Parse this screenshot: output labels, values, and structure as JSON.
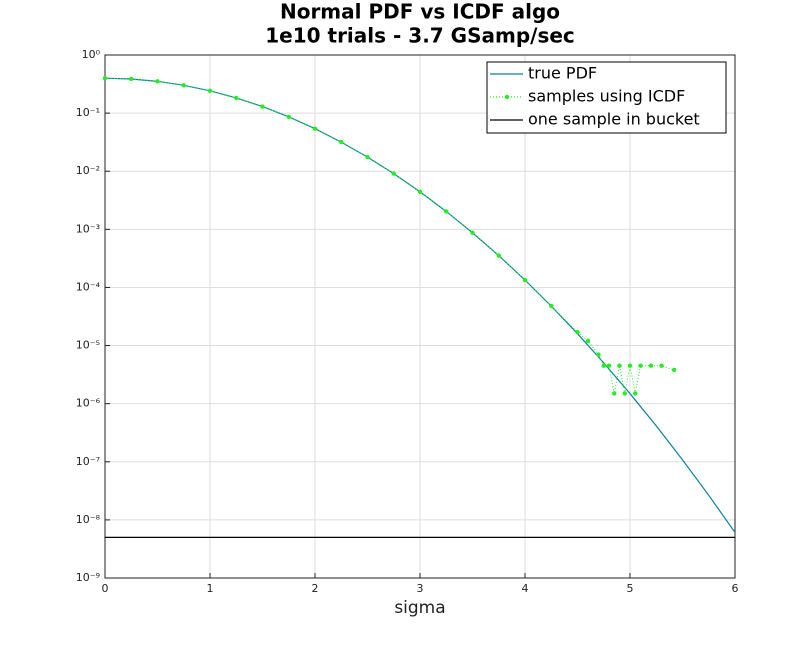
{
  "chart_data": {
    "type": "line",
    "title": "Normal PDF vs ICDF algo",
    "subtitle": "1e10 trials - 3.7 GSamp/sec",
    "x_label": "sigma",
    "log_y": true,
    "grid": true,
    "legend": "upper right",
    "xlim": [
      0,
      6
    ],
    "xticks": [
      0,
      1,
      2,
      3,
      4,
      5,
      6
    ],
    "ylim": [
      1e-09,
      1
    ],
    "yticks": [
      {
        "value": 1e-09,
        "label": "10⁻⁹"
      },
      {
        "value": 1e-08,
        "label": "10⁻⁸"
      },
      {
        "value": 1e-07,
        "label": "10⁻⁷"
      },
      {
        "value": 1e-06,
        "label": "10⁻⁶"
      },
      {
        "value": 1e-05,
        "label": "10⁻⁵"
      },
      {
        "value": 0.0001,
        "label": "10⁻⁴"
      },
      {
        "value": 0.001,
        "label": "10⁻³"
      },
      {
        "value": 0.01,
        "label": "10⁻²"
      },
      {
        "value": 0.1,
        "label": "10⁻¹"
      },
      {
        "value": 1,
        "label": "10⁰"
      }
    ],
    "series": [
      {
        "name": "true PDF",
        "color": "#0a7f9f",
        "style": "solid",
        "markers": false,
        "x": [
          0,
          0.25,
          0.5,
          0.75,
          1,
          1.25,
          1.5,
          1.75,
          2,
          2.25,
          2.5,
          2.75,
          3,
          3.25,
          3.5,
          3.75,
          4,
          4.25,
          4.5,
          4.75,
          5,
          5.25,
          5.5,
          5.75,
          6
        ],
        "values": [
          0.3989,
          0.3867,
          0.3521,
          0.3011,
          0.242,
          0.1826,
          0.1295,
          0.0863,
          0.054,
          0.0317,
          0.0175,
          0.00909,
          0.00443,
          0.00203,
          0.000873,
          0.000353,
          0.000134,
          4.77e-05,
          1.6e-05,
          5.03e-06,
          1.49e-06,
          4.14e-07,
          1.08e-07,
          2.65e-08,
          6.08e-09
        ]
      },
      {
        "name": "samples using ICDF",
        "color": "#22ee22",
        "style": "dotted",
        "markers": true,
        "x": [
          0,
          0.25,
          0.5,
          0.75,
          1,
          1.25,
          1.5,
          1.75,
          2,
          2.25,
          2.5,
          2.75,
          3,
          3.25,
          3.5,
          3.75,
          4,
          4.25,
          4.5,
          4.6,
          4.7,
          4.75,
          4.8,
          4.85,
          4.9,
          4.95,
          5,
          5.05,
          5.1,
          5.2,
          5.3,
          5.42
        ],
        "values": [
          0.3989,
          0.3867,
          0.3521,
          0.3011,
          0.242,
          0.1826,
          0.1295,
          0.0863,
          0.054,
          0.0317,
          0.0175,
          0.00909,
          0.00443,
          0.00203,
          0.000873,
          0.000353,
          0.000134,
          4.8e-05,
          1.7e-05,
          1.2e-05,
          7e-06,
          4.5e-06,
          4.5e-06,
          1.5e-06,
          4.5e-06,
          1.5e-06,
          4.5e-06,
          1.5e-06,
          4.5e-06,
          4.5e-06,
          4.5e-06,
          3.8e-06
        ]
      },
      {
        "name": "one sample in bucket",
        "color": "#000000",
        "style": "solid",
        "markers": false,
        "x": [
          0,
          6
        ],
        "values": [
          5e-09,
          5e-09
        ]
      }
    ]
  }
}
